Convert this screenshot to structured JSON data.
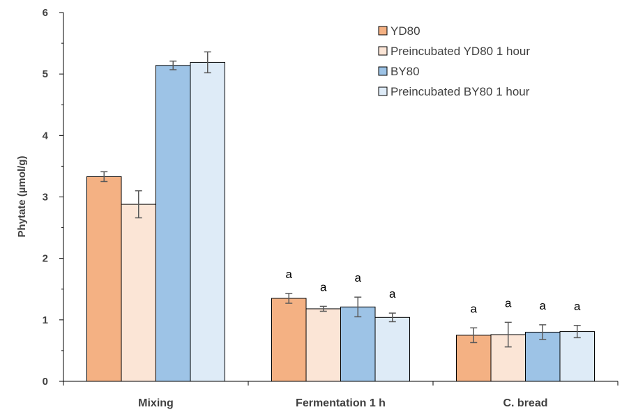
{
  "chart_data": {
    "type": "bar",
    "ylabel": "Phytate (µmol/g)",
    "xlabel": "",
    "ylim": [
      0,
      6
    ],
    "yticks": [
      "0",
      "1",
      "2",
      "3",
      "4",
      "5",
      "6"
    ],
    "grid": false,
    "legend_position": "top-right",
    "categories": [
      "Mixing",
      "Fermentation 1 h",
      "C. bread"
    ],
    "series": [
      {
        "name": "YD80",
        "color": "#f4b183",
        "values": [
          3.33,
          1.35,
          0.75
        ],
        "errors": [
          0.08,
          0.08,
          0.12
        ]
      },
      {
        "name": "Preincubated YD80 1 hour",
        "color": "#fbe5d6",
        "values": [
          2.88,
          1.18,
          0.76
        ],
        "errors": [
          0.22,
          0.04,
          0.2
        ]
      },
      {
        "name": "BY80",
        "color": "#9dc3e6",
        "values": [
          5.14,
          1.21,
          0.8
        ],
        "errors": [
          0.07,
          0.16,
          0.12
        ]
      },
      {
        "name": "Preincubated BY80 1 hour",
        "color": "#deebf7",
        "values": [
          5.19,
          1.04,
          0.81
        ],
        "errors": [
          0.17,
          0.07,
          0.1
        ]
      }
    ],
    "annotations": [
      [
        "",
        "",
        "",
        ""
      ],
      [
        "a",
        "a",
        "a",
        "a"
      ],
      [
        "a",
        "a",
        "a",
        "a"
      ]
    ]
  }
}
